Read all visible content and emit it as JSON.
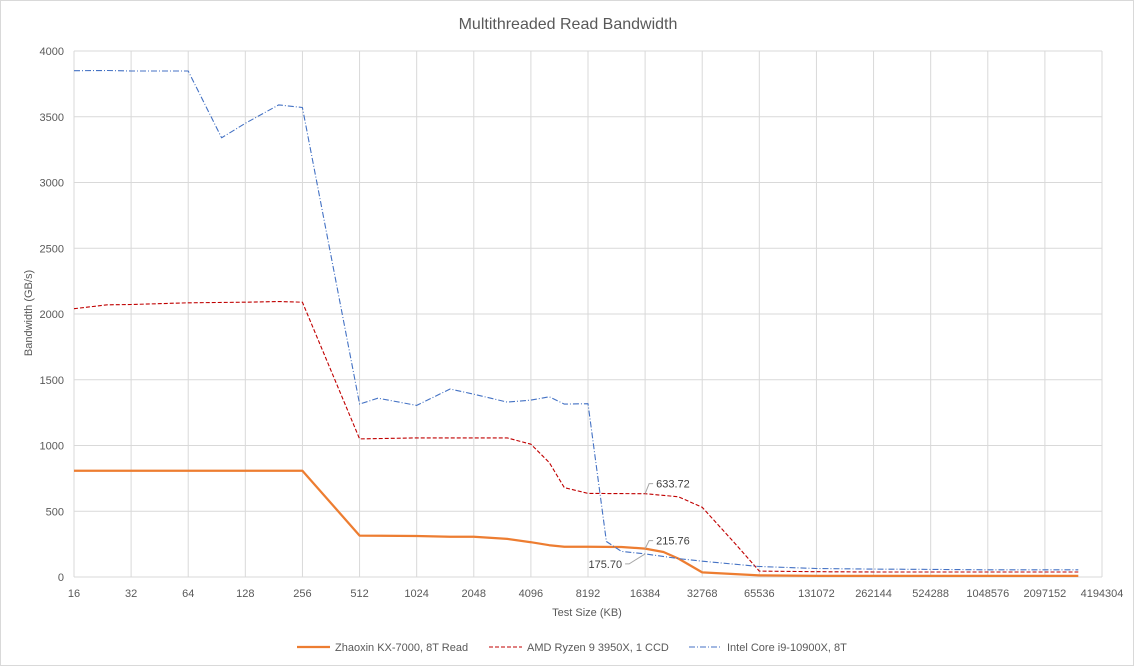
{
  "chart_data": {
    "type": "line",
    "title": "Multithreaded Read Bandwidth",
    "xlabel": "Test Size (KB)",
    "ylabel": "Bandwidth (GB/s)",
    "ylim": [
      0,
      4000
    ],
    "yticks": [
      "0",
      "500",
      "1000",
      "1500",
      "2000",
      "2500",
      "3000",
      "3500",
      "4000"
    ],
    "xtick_labels": [
      "16",
      "32",
      "64",
      "128",
      "256",
      "512",
      "1024",
      "2048",
      "4096",
      "8192",
      "16384",
      "32768",
      "65536",
      "131072",
      "262144",
      "524288",
      "1048576",
      "2097152",
      "4194304"
    ],
    "x_scale": "log2",
    "grid": true,
    "legend_position": "bottom",
    "series": [
      {
        "name": "Zhaoxin KX-7000, 8T Read",
        "color": "#ED7D31",
        "style": "solid",
        "points": [
          [
            16,
            808
          ],
          [
            256,
            808
          ],
          [
            512,
            315
          ],
          [
            1024,
            312
          ],
          [
            1536,
            306
          ],
          [
            2048,
            306
          ],
          [
            3072,
            290
          ],
          [
            4096,
            265
          ],
          [
            5120,
            242
          ],
          [
            6144,
            230
          ],
          [
            8192,
            230
          ],
          [
            12288,
            228
          ],
          [
            16384,
            215.76
          ],
          [
            20480,
            190
          ],
          [
            24576,
            140
          ],
          [
            32768,
            35
          ],
          [
            65536,
            12
          ],
          [
            131072,
            8
          ],
          [
            262144,
            8
          ],
          [
            524288,
            8
          ],
          [
            1048576,
            8
          ],
          [
            2097152,
            8
          ],
          [
            3145728,
            8
          ]
        ]
      },
      {
        "name": "AMD Ryzen 9 3950X, 1 CCD",
        "color": "#C00000",
        "style": "dashed",
        "points": [
          [
            16,
            2040
          ],
          [
            24,
            2070
          ],
          [
            32,
            2072
          ],
          [
            64,
            2085
          ],
          [
            128,
            2090
          ],
          [
            192,
            2095
          ],
          [
            256,
            2090
          ],
          [
            512,
            1050
          ],
          [
            1024,
            1058
          ],
          [
            2048,
            1058
          ],
          [
            3072,
            1058
          ],
          [
            4096,
            1010
          ],
          [
            5120,
            870
          ],
          [
            6144,
            680
          ],
          [
            8192,
            636
          ],
          [
            12288,
            634
          ],
          [
            16384,
            633.72
          ],
          [
            24576,
            610
          ],
          [
            32768,
            530
          ],
          [
            49152,
            250
          ],
          [
            65536,
            45
          ],
          [
            131072,
            40
          ],
          [
            262144,
            38
          ],
          [
            524288,
            38
          ],
          [
            1048576,
            38
          ],
          [
            2097152,
            38
          ],
          [
            3145728,
            38
          ]
        ]
      },
      {
        "name": "Intel Core i9-10900X, 8T",
        "color": "#4472C4",
        "style": "dashdot",
        "points": [
          [
            16,
            3850
          ],
          [
            24,
            3852
          ],
          [
            32,
            3848
          ],
          [
            64,
            3848
          ],
          [
            96,
            3340
          ],
          [
            128,
            3450
          ],
          [
            192,
            3590
          ],
          [
            256,
            3570
          ],
          [
            512,
            1315
          ],
          [
            640,
            1360
          ],
          [
            1024,
            1305
          ],
          [
            1536,
            1430
          ],
          [
            2048,
            1390
          ],
          [
            3072,
            1330
          ],
          [
            4096,
            1345
          ],
          [
            5120,
            1370
          ],
          [
            6144,
            1315
          ],
          [
            8192,
            1318
          ],
          [
            10240,
            270
          ],
          [
            12288,
            195
          ],
          [
            16384,
            175.7
          ],
          [
            24576,
            140
          ],
          [
            32768,
            120
          ],
          [
            65536,
            80
          ],
          [
            131072,
            65
          ],
          [
            262144,
            60
          ],
          [
            524288,
            58
          ],
          [
            1048576,
            55
          ],
          [
            2097152,
            55
          ],
          [
            3145728,
            55
          ]
        ]
      }
    ],
    "annotations": [
      {
        "text": "633.72",
        "x": 16384,
        "y": 633.72
      },
      {
        "text": "215.76",
        "x": 16384,
        "y": 215.76
      },
      {
        "text": "175.70",
        "x": 16384,
        "y": 175.7
      }
    ]
  }
}
